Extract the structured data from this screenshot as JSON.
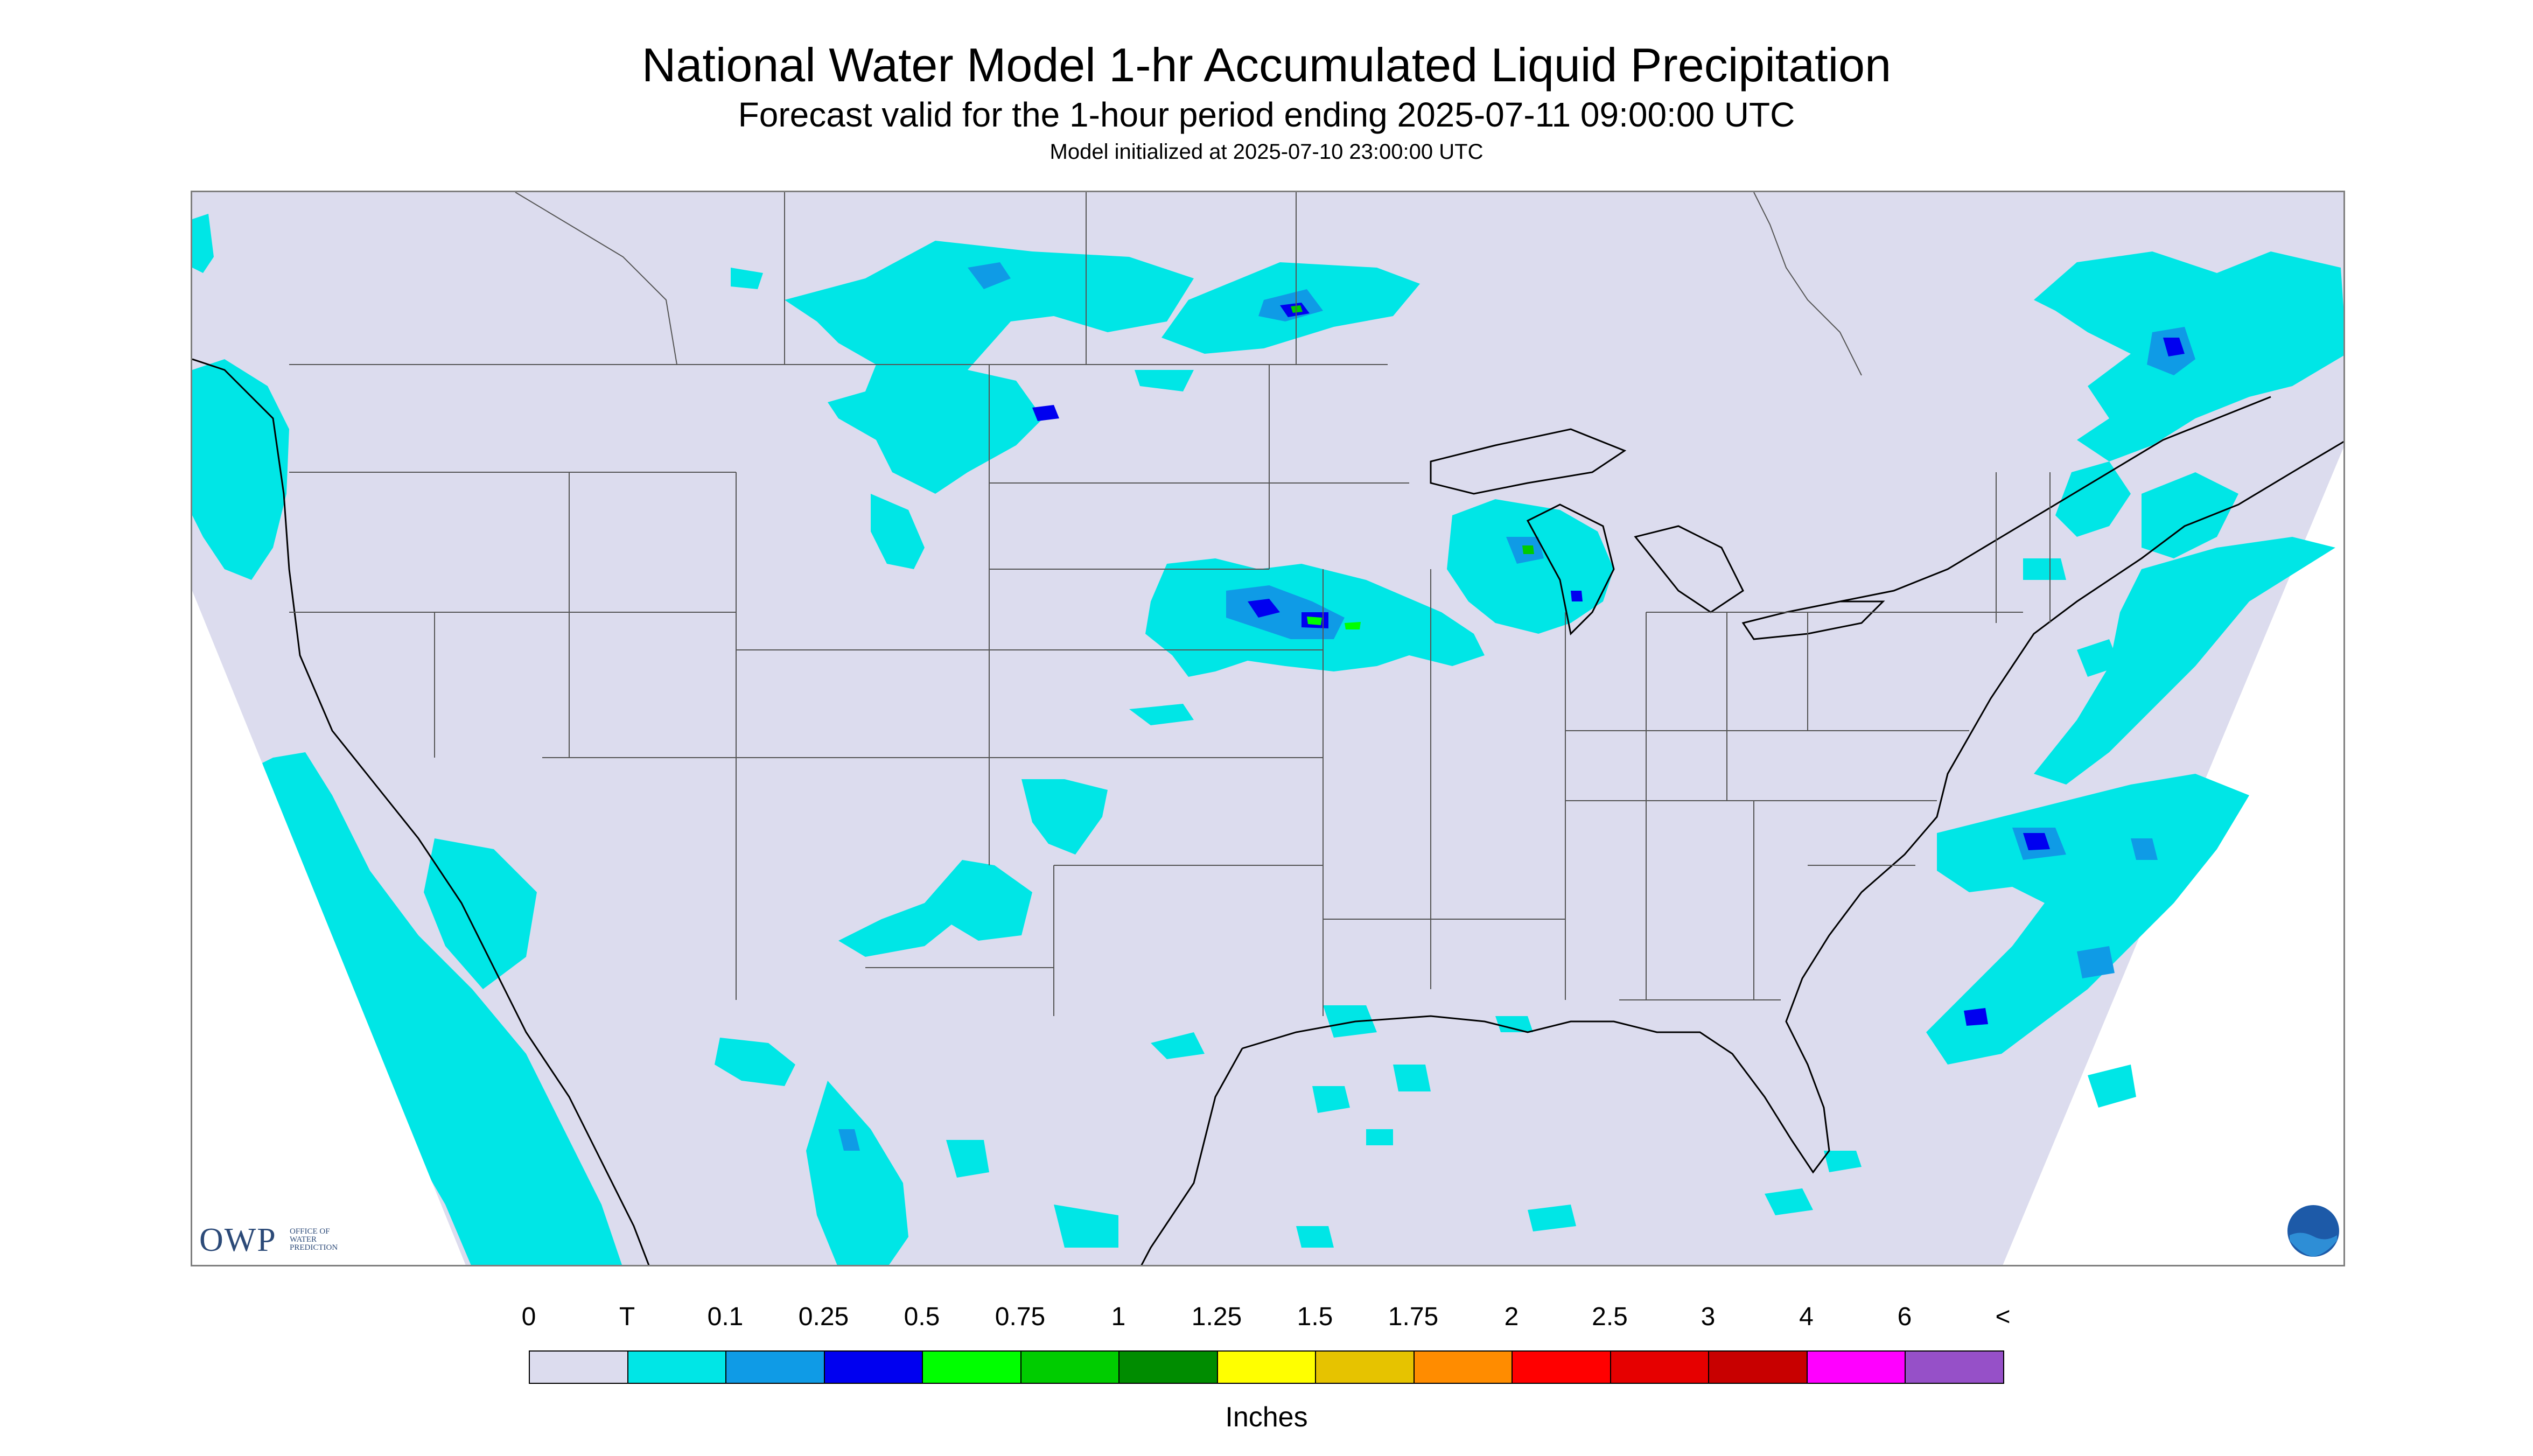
{
  "header": {
    "title": "National Water Model 1-hr Accumulated Liquid Precipitation",
    "subtitle": "Forecast valid for the 1-hour period ending 2025-07-11 09:00:00 UTC",
    "init_note": "Model initialized at 2025-07-10 23:00:00 UTC"
  },
  "logos": {
    "owp_big": "OWP",
    "owp_small": "OFFICE OF\nWATER\nPREDICTION",
    "noaa": "NOAA"
  },
  "colors": {
    "background_none": "#dcdcee",
    "trace": "#00e6e6",
    "outline": "#000000",
    "state_line": "#555555"
  },
  "legend": {
    "labels": [
      "0",
      "T",
      "0.1",
      "0.25",
      "0.5",
      "0.75",
      "1",
      "1.25",
      "1.5",
      "1.75",
      "2",
      "2.5",
      "3",
      "4",
      "6",
      "<"
    ],
    "colors": [
      "#dcdcee",
      "#00e6e6",
      "#0f9be6",
      "#0000f0",
      "#00ff00",
      "#00cc00",
      "#008c00",
      "#ffff00",
      "#e6c300",
      "#ff8c00",
      "#ff0000",
      "#e60000",
      "#c80000",
      "#ff00ff",
      "#9650c8"
    ],
    "units": "Inches"
  },
  "precip_areas": [
    {
      "region": "Washington coast / Pacific",
      "max_category": "T"
    },
    {
      "region": "California / Baja Pacific coast",
      "max_category": "T"
    },
    {
      "region": "Montana / North Dakota / southern Canada",
      "max_category": "0.25"
    },
    {
      "region": "Minnesota / Ontario border",
      "max_category": "0.75"
    },
    {
      "region": "Nebraska / Iowa",
      "max_category": "0.75"
    },
    {
      "region": "Wisconsin / Lake Michigan",
      "max_category": "0.75"
    },
    {
      "region": "New Mexico / West Texas",
      "max_category": "T"
    },
    {
      "region": "Gulf of Mexico",
      "max_category": "T"
    },
    {
      "region": "Quebec / New England",
      "max_category": "0.25"
    },
    {
      "region": "Carolina coast / Atlantic",
      "max_category": "0.5"
    }
  ]
}
